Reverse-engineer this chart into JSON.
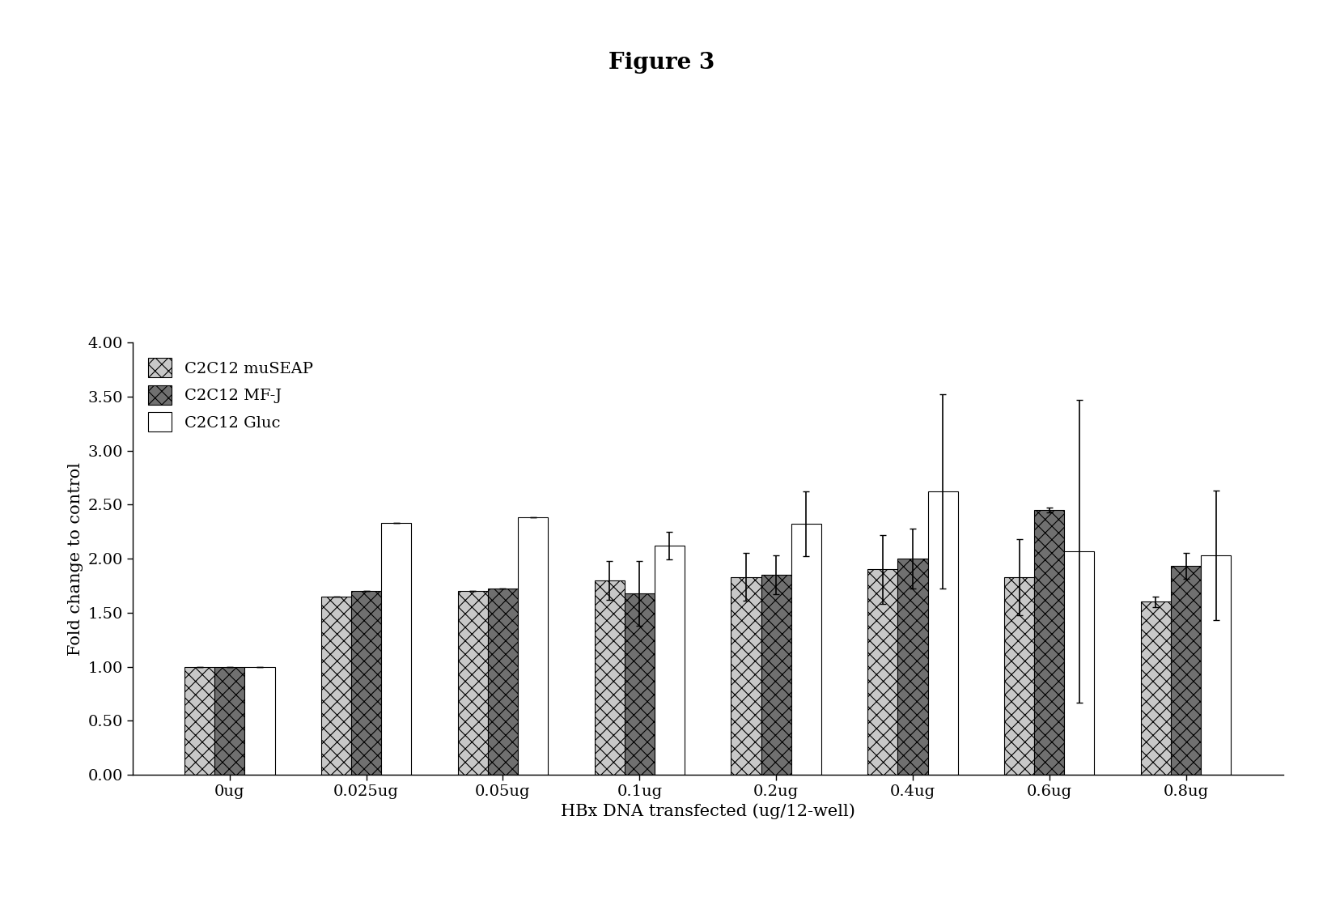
{
  "title": "Figure 3",
  "xlabel": "HBx DNA transfected (ug/12-well)",
  "ylabel": "Fold change to control",
  "categories": [
    "0ug",
    "0.025ug",
    "0.05ug",
    "0.1ug",
    "0.2ug",
    "0.4ug",
    "0.6ug",
    "0.8ug"
  ],
  "series": {
    "C2C12 muSEAP": {
      "values": [
        1.0,
        1.65,
        1.7,
        1.8,
        1.83,
        1.9,
        1.83,
        1.6
      ],
      "errors": [
        0.0,
        0.0,
        0.0,
        0.18,
        0.22,
        0.32,
        0.35,
        0.05
      ],
      "hatch": "xx",
      "facecolor": "#c8c8c8",
      "edgecolor": "#000000"
    },
    "C2C12 MF-J": {
      "values": [
        1.0,
        1.7,
        1.72,
        1.68,
        1.85,
        2.0,
        2.45,
        1.93
      ],
      "errors": [
        0.0,
        0.0,
        0.0,
        0.3,
        0.18,
        0.28,
        0.02,
        0.12
      ],
      "hatch": "xx",
      "facecolor": "#707070",
      "edgecolor": "#000000"
    },
    "C2C12 Gluc": {
      "values": [
        1.0,
        2.33,
        2.38,
        2.12,
        2.32,
        2.62,
        2.07,
        2.03
      ],
      "errors": [
        0.0,
        0.0,
        0.0,
        0.13,
        0.3,
        0.9,
        1.4,
        0.6
      ],
      "hatch": "",
      "facecolor": "#ffffff",
      "edgecolor": "#000000"
    }
  },
  "ylim": [
    0.0,
    4.0
  ],
  "yticks": [
    0.0,
    0.5,
    1.0,
    1.5,
    2.0,
    2.5,
    3.0,
    3.5,
    4.0
  ],
  "bar_width": 0.22,
  "figsize": [
    16.35,
    11.13
  ],
  "dpi": 100,
  "background_color": "#ffffff",
  "title_fontsize": 20,
  "axis_label_fontsize": 15,
  "tick_fontsize": 14,
  "legend_fontsize": 14
}
